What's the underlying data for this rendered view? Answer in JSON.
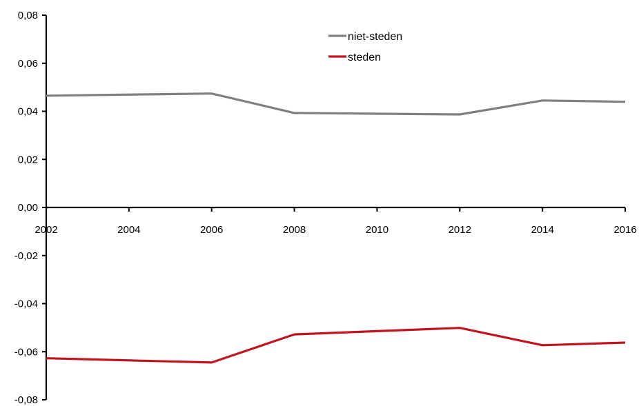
{
  "chart_data": {
    "type": "line",
    "title": "",
    "xlabel": "",
    "ylabel": "",
    "x": [
      2002,
      2004,
      2006,
      2008,
      2010,
      2012,
      2014,
      2016
    ],
    "x_ticks": [
      "2002",
      "2004",
      "2006",
      "2008",
      "2010",
      "2012",
      "2014",
      "2016"
    ],
    "y_ticks": [
      "0,08",
      "0,06",
      "0,04",
      "0,02",
      "0,00",
      "-0,02",
      "-0,04",
      "-0,06",
      "-0,08"
    ],
    "ylim": [
      -0.08,
      0.08
    ],
    "xlim": [
      2002,
      2016
    ],
    "grid": false,
    "legend_position": "top-center",
    "series": [
      {
        "name": "niet-steden",
        "color": "#808080",
        "points": [
          [
            2002,
            0.0465
          ],
          [
            2006,
            0.0474
          ],
          [
            2008,
            0.0393
          ],
          [
            2012,
            0.0387
          ],
          [
            2014,
            0.0445
          ],
          [
            2016,
            0.044
          ]
        ]
      },
      {
        "name": "steden",
        "color": "#c0141e",
        "points": [
          [
            2002,
            -0.0627
          ],
          [
            2006,
            -0.0645
          ],
          [
            2008,
            -0.0528
          ],
          [
            2012,
            -0.0501
          ],
          [
            2014,
            -0.0573
          ],
          [
            2016,
            -0.0562
          ]
        ]
      }
    ]
  }
}
